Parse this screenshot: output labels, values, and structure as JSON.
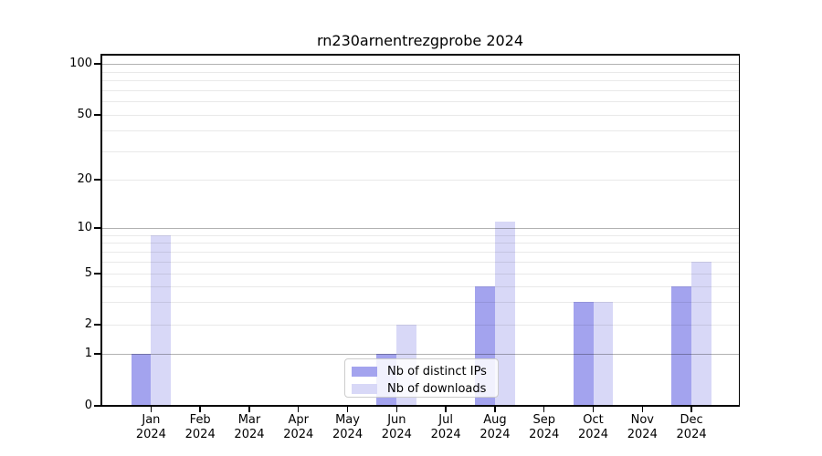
{
  "chart_data": {
    "type": "bar",
    "title": "rn230arnentrezgprobe 2024",
    "year": "2024",
    "categories": [
      "Jan",
      "Feb",
      "Mar",
      "Apr",
      "May",
      "Jun",
      "Jul",
      "Aug",
      "Sep",
      "Oct",
      "Nov",
      "Dec"
    ],
    "series": [
      {
        "name": "Nb of distinct IPs",
        "color": "#a3a3ee",
        "values": [
          1,
          0,
          0,
          0,
          0,
          1,
          0,
          4,
          0,
          3,
          0,
          4
        ]
      },
      {
        "name": "Nb of downloads",
        "color": "#d8d8f7",
        "values": [
          9,
          0,
          0,
          0,
          0,
          2,
          0,
          11,
          0,
          3,
          0,
          6
        ]
      }
    ],
    "y_axis": {
      "scale": "symlog-like",
      "ylim": [
        0,
        100
      ],
      "labeled_ticks": [
        0,
        1,
        2,
        5,
        10,
        20,
        50,
        100
      ],
      "dark_grid_ticks": [
        1,
        10,
        100
      ],
      "unlabeled_minor_ticks": [
        3,
        4,
        6,
        7,
        8,
        9,
        30,
        40,
        60,
        70,
        80,
        90
      ]
    },
    "grid": "horizontal major+minor",
    "legend": {
      "position": "lower center",
      "labels": [
        "Nb of distinct IPs",
        "Nb of downloads"
      ]
    }
  },
  "colors": {
    "background": "#ffffff",
    "axis": "#000000",
    "major_grid": "#b3b3b3",
    "minor_grid": "#e9e9e9",
    "legend_border": "#cccccc",
    "text": "#000000"
  }
}
